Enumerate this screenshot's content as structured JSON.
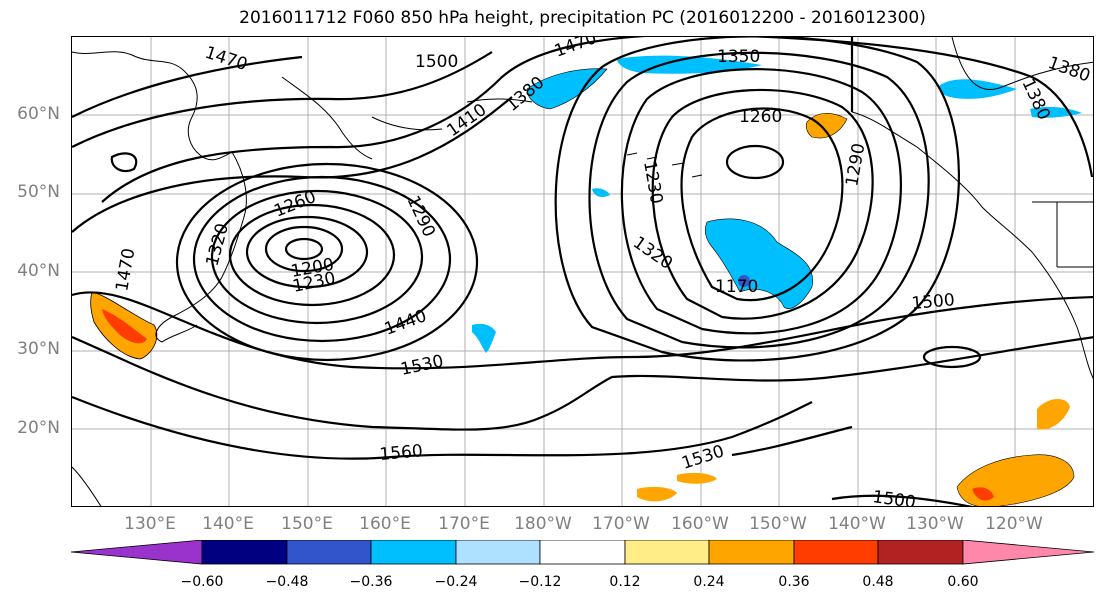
{
  "title": "2016011712 F060 850 hPa height, precipitation PC (2016012200 - 2016012300)",
  "lat_labels": [
    "60°N",
    "50°N",
    "40°N",
    "30°N",
    "20°N"
  ],
  "lon_labels": [
    "130°E",
    "140°E",
    "150°E",
    "160°E",
    "170°E",
    "180°W",
    "170°W",
    "160°W",
    "150°W",
    "140°W",
    "130°W",
    "120°W"
  ],
  "contour_labels": [
    "1470",
    "1500",
    "1470",
    "1350",
    "1380",
    "1410",
    "1380",
    "1380",
    "1260",
    "1290",
    "1230",
    "1290",
    "1260",
    "1320",
    "1200",
    "1230",
    "1320",
    "1170",
    "1440",
    "1500",
    "1530",
    "1560",
    "1530",
    "1500",
    "1470"
  ],
  "colorbar": {
    "ticks": [
      "−0.60",
      "−0.48",
      "−0.36",
      "−0.24",
      "−0.12",
      "0.12",
      "0.24",
      "0.36",
      "0.48",
      "0.60"
    ],
    "colors": [
      "#9933cc",
      "#000080",
      "#3355cc",
      "#00bfff",
      "#aee0ff",
      "#ffffff",
      "#ffee88",
      "#ffa500",
      "#ff3d00",
      "#b22222",
      "#ff88aa"
    ]
  },
  "map_colors": {
    "land_outline": "#000000",
    "grid": "#b0b0b0",
    "axis_label": "#808080"
  }
}
